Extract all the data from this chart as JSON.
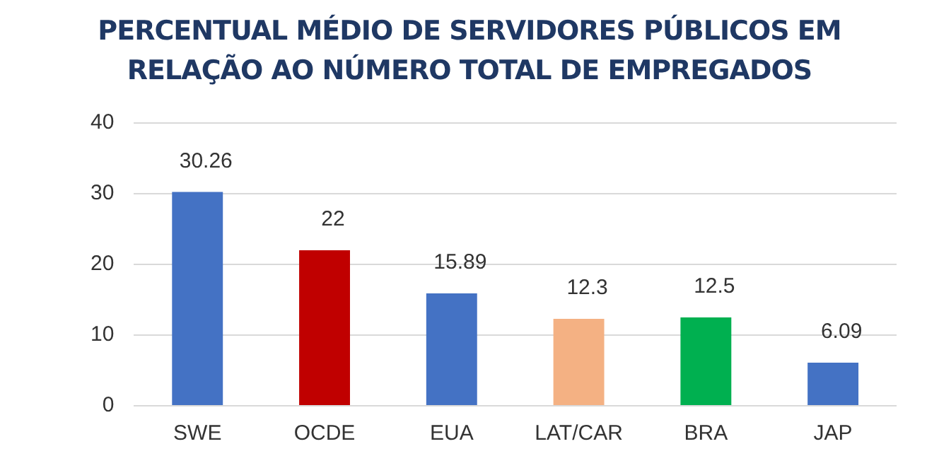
{
  "chart_data": {
    "type": "bar",
    "title": "PERCENTUAL MÉDIO DE SERVIDORES PÚBLICOS EM RELAÇÃO AO NÚMERO TOTAL DE EMPREGADOS",
    "categories": [
      "SWE",
      "OCDE",
      "EUA",
      "LAT/CAR",
      "BRA",
      "JAP"
    ],
    "values": [
      30.26,
      22,
      15.89,
      12.3,
      12.5,
      6.09
    ],
    "colors": [
      "#4472c4",
      "#c00000",
      "#4472c4",
      "#f4b183",
      "#00b050",
      "#4472c4"
    ],
    "ylim": [
      0,
      40
    ],
    "yticks": [
      0,
      10,
      20,
      30,
      40
    ],
    "grid": "y",
    "data_labels": true,
    "legend": false
  }
}
